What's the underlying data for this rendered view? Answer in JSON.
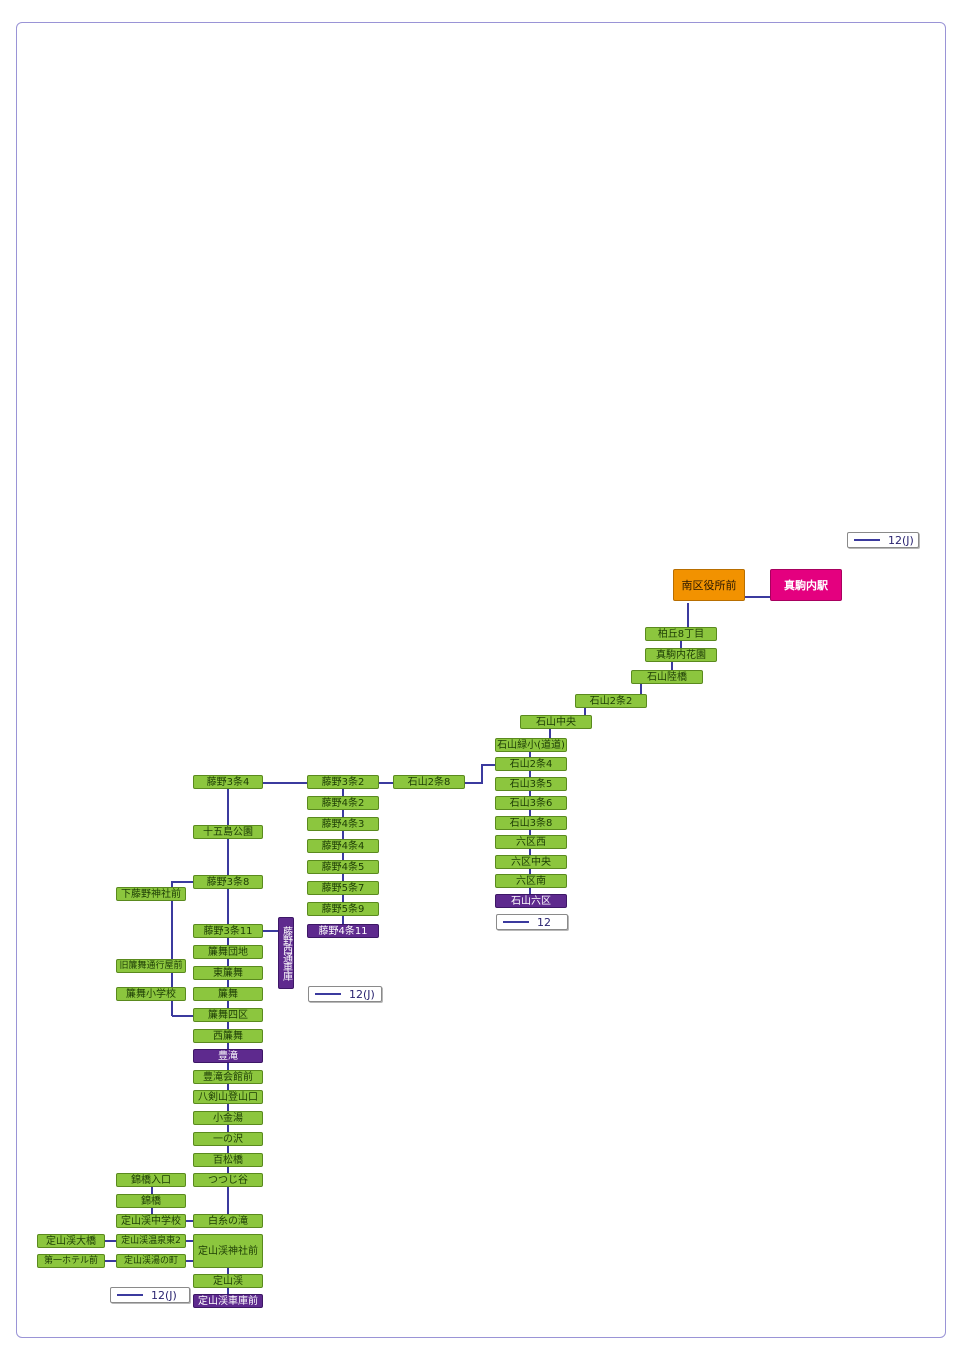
{
  "legends": {
    "top": "12(J)",
    "mid_center": "12",
    "mid_left": "12(J)",
    "bottom": "12(J)"
  },
  "colors": {
    "stop": "#8cc63e",
    "terminal": "#5e2a8e",
    "hub": "#f29200",
    "station": "#e4007f",
    "route_line": "#3b3a9e"
  },
  "stops": {
    "makomanai_station": "真駒内駅",
    "minamiku_office": "南区役所前",
    "kashiwaoka8": "柏丘8丁目",
    "makomanai_kaen": "真駒内花園",
    "ishiyama_rikkyo": "石山陸橋",
    "ishiyama2_2": "石山2条2",
    "ishiyama_chuo": "石山中央",
    "ishiyama_midorisho": "石山緑小(道道)",
    "ishiyama2_4": "石山2条4",
    "ishiyama3_5": "石山3条5",
    "ishiyama3_6": "石山3条6",
    "ishiyama3_8": "石山3条8",
    "rokku_nishi": "六区西",
    "rokku_chuo": "六区中央",
    "rokku_minami": "六区南",
    "ishiyama_rokku": "石山六区",
    "ishiyama2_8": "石山2条8",
    "fujino3_2": "藤野3条2",
    "fujino4_2": "藤野4条2",
    "fujino4_3": "藤野4条3",
    "fujino4_4": "藤野4条4",
    "fujino4_5": "藤野4条5",
    "fujino5_7": "藤野5条7",
    "fujino5_9": "藤野5条9",
    "fujino4_11": "藤野4条11",
    "fujino3_4": "藤野3条4",
    "jugoshima": "十五島公園",
    "fujino3_8": "藤野3条8",
    "shimofujino": "下藤野神社前",
    "fujino3_11": "藤野3条11",
    "fujino_depot": "藤野西通車庫",
    "sumai_danchi": "簾舞団地",
    "higashi_sumai": "東簾舞",
    "sumai": "簾舞",
    "kyu_sumai": "旧簾舞通行屋前",
    "sumai_school": "簾舞小学校",
    "sumai4ku": "簾舞四区",
    "nishi_sumai": "西簾舞",
    "hotaki": "豊滝",
    "hotaki_kaikan": "豊滝会館前",
    "hakkenzan": "八剣山登山口",
    "kogane_yu": "小金湯",
    "ichinosawa": "一の沢",
    "hyakumatsu": "百松橋",
    "tsutsujidani": "つつじ谷",
    "nishikibashi_iriguchi": "錦橋入口",
    "nishikibashi": "錦橋",
    "jozankei_jh": "定山渓中学校",
    "shiraito": "白糸の滝",
    "jozankei_ohashi": "定山渓大橋",
    "jozankei_onsen_higashi2": "定山渓温泉東2",
    "jozankei_jinja": "定山渓神社前",
    "daiichi_hotel": "第一ホテル前",
    "jozankei_yunomachi": "定山渓湯の町",
    "jozankei": "定山渓",
    "jozankei_depot": "定山渓車庫前"
  }
}
